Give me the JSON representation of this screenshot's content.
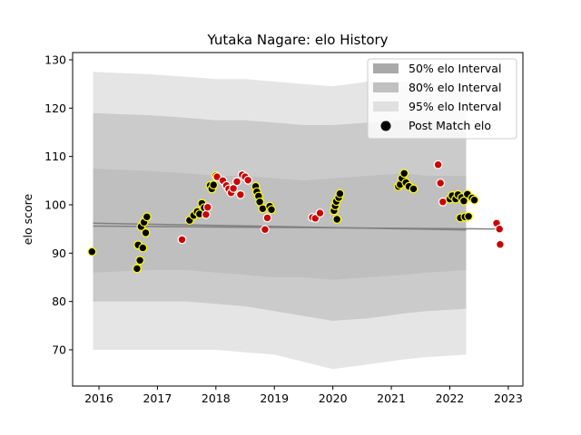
{
  "chart_data": {
    "type": "scatter",
    "title": "Yutaka Nagare: elo History",
    "xlabel": "",
    "ylabel": "elo score",
    "xlim": [
      2015.55,
      2023.25
    ],
    "ylim": [
      62.5,
      131.5
    ],
    "x_ticks": [
      2016,
      2017,
      2018,
      2019,
      2020,
      2021,
      2022,
      2023
    ],
    "y_ticks": [
      70,
      80,
      90,
      100,
      110,
      120,
      130
    ],
    "grid": false,
    "legend_position": "top-right",
    "legend": [
      "50% elo Interval",
      "80% elo Interval",
      "95% elo Interval",
      "Post Match elo"
    ],
    "colors": {
      "band50": "#a9a9a9",
      "band80": "#c0c0c0",
      "band95": "#e0e0e0",
      "mean_line": "#808080",
      "win_point": "#ffff00",
      "loss_point": "#cc0000"
    },
    "bands": {
      "x": [
        2015.9,
        2016.9,
        2017.5,
        2018.0,
        2018.5,
        2019.0,
        2019.5,
        2020.0,
        2020.6,
        2021.2,
        2021.6,
        2022.28
      ],
      "p95_upper": [
        127.5,
        127.0,
        126.5,
        126.0,
        126.0,
        125.5,
        125.0,
        124.5,
        125.5,
        125.5,
        125.0,
        125.0
      ],
      "p95_lower": [
        70.0,
        70.0,
        70.0,
        70.0,
        69.5,
        69.0,
        67.5,
        66.0,
        67.0,
        68.0,
        68.5,
        69.0
      ],
      "p80_upper": [
        119.0,
        118.5,
        118.0,
        117.5,
        117.5,
        117.0,
        116.5,
        116.5,
        117.0,
        117.5,
        117.5,
        117.0
      ],
      "p80_lower": [
        80.0,
        80.0,
        80.0,
        79.5,
        79.0,
        78.0,
        77.0,
        76.0,
        76.5,
        77.5,
        78.0,
        78.5
      ],
      "p50_upper": [
        107.5,
        107.0,
        106.5,
        106.0,
        106.0,
        105.5,
        105.0,
        105.5,
        106.0,
        106.5,
        106.0,
        106.0
      ],
      "p50_lower": [
        86.0,
        86.5,
        86.5,
        86.0,
        85.5,
        85.0,
        85.0,
        84.5,
        85.0,
        85.5,
        86.0,
        86.5
      ]
    },
    "mean_lines": [
      {
        "x": [
          2015.9,
          2022.28
        ],
        "y": [
          96.2,
          94.8
        ]
      },
      {
        "x": [
          2015.9,
          2022.9
        ],
        "y": [
          95.6,
          95.0
        ]
      }
    ],
    "points": [
      {
        "x": 2015.88,
        "y": 90.3,
        "result": "win"
      },
      {
        "x": 2016.65,
        "y": 86.8,
        "result": "win"
      },
      {
        "x": 2016.67,
        "y": 91.7,
        "result": "win"
      },
      {
        "x": 2016.7,
        "y": 88.5,
        "result": "win"
      },
      {
        "x": 2016.72,
        "y": 95.5,
        "result": "win"
      },
      {
        "x": 2016.75,
        "y": 91.1,
        "result": "win"
      },
      {
        "x": 2016.77,
        "y": 96.4,
        "result": "win"
      },
      {
        "x": 2016.8,
        "y": 94.2,
        "result": "win"
      },
      {
        "x": 2016.82,
        "y": 97.5,
        "result": "win"
      },
      {
        "x": 2017.42,
        "y": 92.8,
        "result": "loss"
      },
      {
        "x": 2017.55,
        "y": 96.8,
        "result": "win"
      },
      {
        "x": 2017.62,
        "y": 97.8,
        "result": "win"
      },
      {
        "x": 2017.68,
        "y": 98.6,
        "result": "win"
      },
      {
        "x": 2017.72,
        "y": 98.1,
        "result": "win"
      },
      {
        "x": 2017.76,
        "y": 100.3,
        "result": "win"
      },
      {
        "x": 2017.8,
        "y": 99.4,
        "result": "win"
      },
      {
        "x": 2017.83,
        "y": 98.0,
        "result": "loss"
      },
      {
        "x": 2017.86,
        "y": 99.5,
        "result": "loss"
      },
      {
        "x": 2017.9,
        "y": 104.0,
        "result": "win"
      },
      {
        "x": 2017.93,
        "y": 103.3,
        "result": "win"
      },
      {
        "x": 2017.96,
        "y": 104.1,
        "result": "win"
      },
      {
        "x": 2018.0,
        "y": 106.0,
        "result": "win"
      },
      {
        "x": 2018.02,
        "y": 105.8,
        "result": "loss"
      },
      {
        "x": 2018.12,
        "y": 105.0,
        "result": "loss"
      },
      {
        "x": 2018.18,
        "y": 104.0,
        "result": "loss"
      },
      {
        "x": 2018.22,
        "y": 103.3,
        "result": "loss"
      },
      {
        "x": 2018.26,
        "y": 102.5,
        "result": "loss"
      },
      {
        "x": 2018.3,
        "y": 103.4,
        "result": "loss"
      },
      {
        "x": 2018.36,
        "y": 104.8,
        "result": "loss"
      },
      {
        "x": 2018.42,
        "y": 102.1,
        "result": "loss"
      },
      {
        "x": 2018.45,
        "y": 106.2,
        "result": "loss"
      },
      {
        "x": 2018.5,
        "y": 105.8,
        "result": "loss"
      },
      {
        "x": 2018.55,
        "y": 105.1,
        "result": "loss"
      },
      {
        "x": 2018.68,
        "y": 103.8,
        "result": "win"
      },
      {
        "x": 2018.7,
        "y": 102.7,
        "result": "win"
      },
      {
        "x": 2018.73,
        "y": 101.8,
        "result": "win"
      },
      {
        "x": 2018.75,
        "y": 100.6,
        "result": "win"
      },
      {
        "x": 2018.8,
        "y": 99.2,
        "result": "win"
      },
      {
        "x": 2018.84,
        "y": 94.9,
        "result": "loss"
      },
      {
        "x": 2018.88,
        "y": 97.3,
        "result": "loss"
      },
      {
        "x": 2018.92,
        "y": 99.7,
        "result": "win"
      },
      {
        "x": 2018.95,
        "y": 99.0,
        "result": "win"
      },
      {
        "x": 2019.65,
        "y": 97.4,
        "result": "loss"
      },
      {
        "x": 2019.7,
        "y": 97.2,
        "result": "loss"
      },
      {
        "x": 2019.78,
        "y": 98.3,
        "result": "loss"
      },
      {
        "x": 2020.02,
        "y": 98.8,
        "result": "win"
      },
      {
        "x": 2020.04,
        "y": 99.8,
        "result": "win"
      },
      {
        "x": 2020.06,
        "y": 100.7,
        "result": "win"
      },
      {
        "x": 2020.07,
        "y": 97.0,
        "result": "win"
      },
      {
        "x": 2020.1,
        "y": 101.5,
        "result": "win"
      },
      {
        "x": 2020.12,
        "y": 102.3,
        "result": "win"
      },
      {
        "x": 2021.12,
        "y": 103.8,
        "result": "win"
      },
      {
        "x": 2021.15,
        "y": 104.2,
        "result": "win"
      },
      {
        "x": 2021.18,
        "y": 105.5,
        "result": "win"
      },
      {
        "x": 2021.22,
        "y": 106.5,
        "result": "win"
      },
      {
        "x": 2021.25,
        "y": 104.6,
        "result": "win"
      },
      {
        "x": 2021.3,
        "y": 103.8,
        "result": "win"
      },
      {
        "x": 2021.38,
        "y": 103.3,
        "result": "win"
      },
      {
        "x": 2021.8,
        "y": 108.3,
        "result": "loss"
      },
      {
        "x": 2021.84,
        "y": 104.5,
        "result": "loss"
      },
      {
        "x": 2021.88,
        "y": 100.6,
        "result": "loss"
      },
      {
        "x": 2022.0,
        "y": 101.2,
        "result": "win"
      },
      {
        "x": 2022.04,
        "y": 101.9,
        "result": "win"
      },
      {
        "x": 2022.1,
        "y": 101.2,
        "result": "win"
      },
      {
        "x": 2022.14,
        "y": 102.1,
        "result": "win"
      },
      {
        "x": 2022.18,
        "y": 97.3,
        "result": "win"
      },
      {
        "x": 2022.2,
        "y": 101.5,
        "result": "win"
      },
      {
        "x": 2022.24,
        "y": 100.8,
        "result": "win"
      },
      {
        "x": 2022.26,
        "y": 97.5,
        "result": "win"
      },
      {
        "x": 2022.3,
        "y": 102.2,
        "result": "win"
      },
      {
        "x": 2022.32,
        "y": 97.6,
        "result": "win"
      },
      {
        "x": 2022.38,
        "y": 101.4,
        "result": "win"
      },
      {
        "x": 2022.42,
        "y": 101.0,
        "result": "win"
      },
      {
        "x": 2022.8,
        "y": 96.2,
        "result": "loss"
      },
      {
        "x": 2022.85,
        "y": 95.0,
        "result": "loss"
      },
      {
        "x": 2022.86,
        "y": 91.8,
        "result": "loss"
      }
    ]
  }
}
